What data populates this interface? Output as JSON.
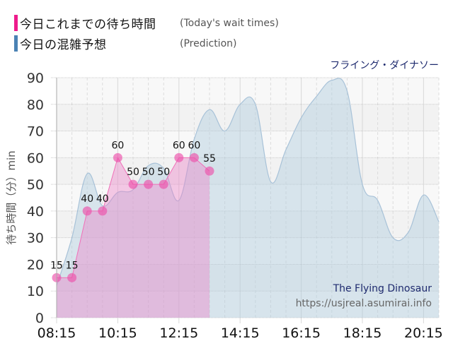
{
  "legend": {
    "items": [
      {
        "label_jp": "今日これまでの待ち時間",
        "label_en": "(Today's wait times)",
        "color": "#ee1b8c"
      },
      {
        "label_jp": "今日の混雑予想",
        "label_en": "(Prediction)",
        "color": "#4a82b4"
      }
    ]
  },
  "ride_name": "フライング・ダイナソー",
  "watermark": {
    "title": "The Flying Dinosaur",
    "url": "https://usjreal.asumirai.info"
  },
  "chart_data": {
    "type": "area",
    "title": "フライング・ダイナソー",
    "xlabel": "",
    "ylabel": "待ち時間（分）min",
    "ylim": [
      0,
      90
    ],
    "yticks": [
      0,
      10,
      20,
      30,
      40,
      50,
      60,
      70,
      80,
      90
    ],
    "xtick_labels": [
      "08:15",
      "10:15",
      "12:15",
      "14:15",
      "16:15",
      "18:15",
      "20:15"
    ],
    "grid": true,
    "legend_position": "top-left",
    "x": [
      "08:15",
      "08:45",
      "09:15",
      "09:45",
      "10:15",
      "10:45",
      "11:15",
      "11:45",
      "12:15",
      "12:45",
      "13:15",
      "13:45",
      "14:15",
      "14:45",
      "15:15",
      "15:45",
      "16:15",
      "16:45",
      "17:15",
      "17:45",
      "18:15",
      "18:45",
      "19:15",
      "19:45",
      "20:15",
      "20:45"
    ],
    "series": [
      {
        "name": "今日これまでの待ち時間 (Today's wait times)",
        "color": "#ee1b8c",
        "x": [
          "08:15",
          "08:45",
          "09:15",
          "09:45",
          "10:15",
          "10:45",
          "11:15",
          "11:45",
          "12:15",
          "12:45",
          "13:15"
        ],
        "values": [
          15,
          15,
          40,
          40,
          60,
          50,
          50,
          50,
          60,
          60,
          55
        ],
        "data_labels": true
      },
      {
        "name": "今日の混雑予想 (Prediction)",
        "color": "#4a82b4",
        "x": [
          "08:15",
          "08:45",
          "09:15",
          "09:45",
          "10:15",
          "10:45",
          "11:15",
          "11:45",
          "12:15",
          "12:45",
          "13:15",
          "13:45",
          "14:15",
          "14:45",
          "15:15",
          "15:45",
          "16:15",
          "16:45",
          "17:15",
          "17:45",
          "18:15",
          "18:45",
          "19:15",
          "19:45",
          "20:15",
          "20:45"
        ],
        "values": [
          12,
          30,
          54,
          42,
          47,
          48,
          57,
          56,
          44,
          67,
          78,
          70,
          80,
          80,
          51,
          63,
          75,
          83,
          89,
          85,
          50,
          44,
          30,
          32,
          46,
          36
        ]
      }
    ]
  }
}
